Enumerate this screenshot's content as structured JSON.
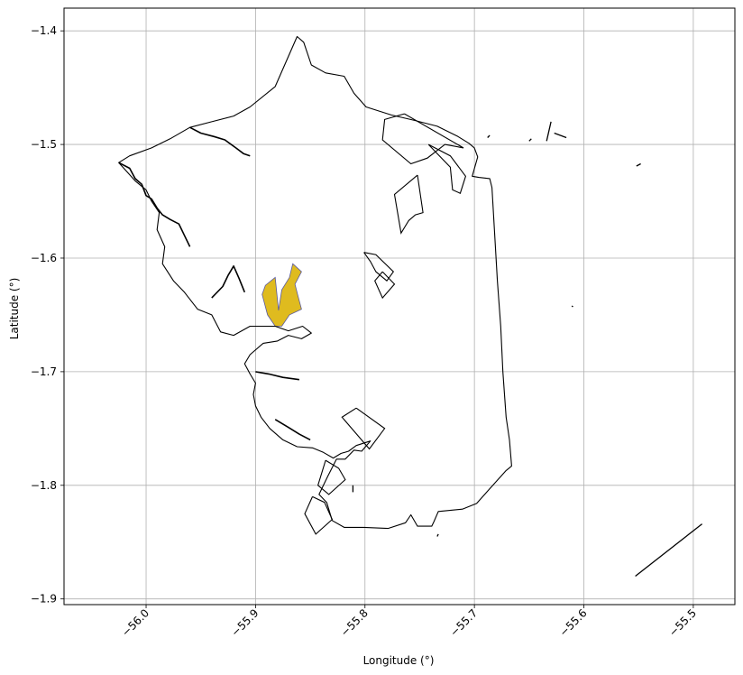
{
  "chart_data": {
    "type": "map",
    "xlabel": "Longitude (°)",
    "ylabel": "Latitude (°)",
    "xlim": [
      -56.075,
      -55.462
    ],
    "ylim": [
      -1.905,
      -1.38
    ],
    "grid": true,
    "x_ticks": [
      {
        "value": -56.0,
        "label": "−56.0"
      },
      {
        "value": -55.9,
        "label": "−55.9"
      },
      {
        "value": -55.8,
        "label": "−55.8"
      },
      {
        "value": -55.7,
        "label": "−55.7"
      },
      {
        "value": -55.6,
        "label": "−55.6"
      },
      {
        "value": -55.5,
        "label": "−55.5"
      }
    ],
    "y_ticks": [
      {
        "value": -1.4,
        "label": "−1.4"
      },
      {
        "value": -1.5,
        "label": "−1.5"
      },
      {
        "value": -1.6,
        "label": "−1.6"
      },
      {
        "value": -1.7,
        "label": "−1.7"
      },
      {
        "value": -1.8,
        "label": "−1.8"
      },
      {
        "value": -1.9,
        "label": "−1.9"
      }
    ],
    "colors": {
      "highlight_fill": "#dfbb1f",
      "highlight_edge": "#5a5aa0",
      "boundary": "#000000",
      "grid": "#b0b0b0"
    },
    "highlight_polygon": [
      [
        -55.879,
        -1.646
      ],
      [
        -55.876,
        -1.628
      ],
      [
        -55.869,
        -1.617
      ],
      [
        -55.866,
        -1.605
      ],
      [
        -55.858,
        -1.612
      ],
      [
        -55.864,
        -1.623
      ],
      [
        -55.861,
        -1.634
      ],
      [
        -55.858,
        -1.645
      ],
      [
        -55.869,
        -1.65
      ],
      [
        -55.876,
        -1.66
      ],
      [
        -55.882,
        -1.66
      ],
      [
        -55.889,
        -1.65
      ],
      [
        -55.894,
        -1.632
      ],
      [
        -55.891,
        -1.624
      ],
      [
        -55.882,
        -1.617
      ],
      [
        -55.879,
        -1.646
      ]
    ],
    "outline_main": [
      [
        -55.905,
        -1.467
      ],
      [
        -55.882,
        -1.449
      ],
      [
        -55.862,
        -1.405
      ],
      [
        -55.856,
        -1.41
      ],
      [
        -55.849,
        -1.43
      ],
      [
        -55.836,
        -1.437
      ],
      [
        -55.819,
        -1.44
      ],
      [
        -55.81,
        -1.455
      ],
      [
        -55.799,
        -1.467
      ],
      [
        -55.776,
        -1.474
      ],
      [
        -55.754,
        -1.479
      ],
      [
        -55.734,
        -1.484
      ],
      [
        -55.715,
        -1.493
      ],
      [
        -55.705,
        -1.499
      ],
      [
        -55.7,
        -1.503
      ],
      [
        -55.697,
        -1.511
      ],
      [
        -55.702,
        -1.528
      ],
      [
        -55.696,
        -1.529
      ],
      [
        -55.686,
        -1.53
      ],
      [
        -55.684,
        -1.538
      ],
      [
        -55.679,
        -1.62
      ],
      [
        -55.676,
        -1.66
      ],
      [
        -55.674,
        -1.7
      ],
      [
        -55.671,
        -1.74
      ],
      [
        -55.668,
        -1.76
      ],
      [
        -55.666,
        -1.783
      ],
      [
        -55.671,
        -1.787
      ],
      [
        -55.686,
        -1.803
      ],
      [
        -55.698,
        -1.816
      ],
      [
        -55.711,
        -1.821
      ],
      [
        -55.733,
        -1.823
      ],
      [
        -55.737,
        -1.832
      ],
      [
        -55.739,
        -1.836
      ],
      [
        -55.752,
        -1.836
      ],
      [
        -55.758,
        -1.826
      ],
      [
        -55.763,
        -1.833
      ],
      [
        -55.779,
        -1.838
      ],
      [
        -55.801,
        -1.837
      ],
      [
        -55.819,
        -1.837
      ],
      [
        -55.83,
        -1.831
      ],
      [
        -55.835,
        -1.815
      ],
      [
        -55.842,
        -1.808
      ],
      [
        -55.834,
        -1.792
      ],
      [
        -55.826,
        -1.777
      ],
      [
        -55.818,
        -1.777
      ],
      [
        -55.81,
        -1.769
      ],
      [
        -55.803,
        -1.77
      ],
      [
        -55.795,
        -1.761
      ],
      [
        -55.808,
        -1.765
      ],
      [
        -55.815,
        -1.77
      ],
      [
        -55.822,
        -1.772
      ],
      [
        -55.829,
        -1.776
      ],
      [
        -55.838,
        -1.771
      ],
      [
        -55.848,
        -1.767
      ],
      [
        -55.862,
        -1.766
      ],
      [
        -55.875,
        -1.76
      ],
      [
        -55.887,
        -1.75
      ],
      [
        -55.895,
        -1.74
      ],
      [
        -55.9,
        -1.73
      ],
      [
        -55.902,
        -1.72
      ],
      [
        -55.9,
        -1.71
      ],
      [
        -55.905,
        -1.702
      ],
      [
        -55.91,
        -1.693
      ],
      [
        -55.905,
        -1.685
      ],
      [
        -55.893,
        -1.675
      ],
      [
        -55.88,
        -1.673
      ],
      [
        -55.87,
        -1.668
      ],
      [
        -55.858,
        -1.671
      ],
      [
        -55.849,
        -1.666
      ],
      [
        -55.857,
        -1.66
      ],
      [
        -55.87,
        -1.664
      ],
      [
        -55.882,
        -1.66
      ],
      [
        -55.893,
        -1.66
      ],
      [
        -55.905,
        -1.66
      ],
      [
        -55.92,
        -1.668
      ],
      [
        -55.932,
        -1.665
      ],
      [
        -55.94,
        -1.65
      ],
      [
        -55.953,
        -1.645
      ],
      [
        -55.965,
        -1.63
      ],
      [
        -55.975,
        -1.62
      ],
      [
        -55.985,
        -1.605
      ],
      [
        -55.983,
        -1.59
      ],
      [
        -55.99,
        -1.575
      ],
      [
        -55.988,
        -1.56
      ],
      [
        -55.995,
        -1.55
      ],
      [
        -56.0,
        -1.54
      ],
      [
        -56.01,
        -1.532
      ],
      [
        -56.025,
        -1.516
      ],
      [
        -56.015,
        -1.51
      ],
      [
        -55.995,
        -1.503
      ],
      [
        -55.978,
        -1.495
      ],
      [
        -55.96,
        -1.485
      ],
      [
        -55.94,
        -1.48
      ],
      [
        -55.92,
        -1.475
      ],
      [
        -55.905,
        -1.467
      ]
    ],
    "outline_shapes": [
      [
        [
          -55.764,
          -1.473
        ],
        [
          -55.782,
          -1.478
        ],
        [
          -55.784,
          -1.496
        ],
        [
          -55.758,
          -1.517
        ],
        [
          -55.743,
          -1.512
        ],
        [
          -55.727,
          -1.5
        ],
        [
          -55.71,
          -1.503
        ],
        [
          -55.764,
          -1.473
        ]
      ],
      [
        [
          -55.752,
          -1.527
        ],
        [
          -55.773,
          -1.544
        ],
        [
          -55.767,
          -1.578
        ],
        [
          -55.76,
          -1.567
        ],
        [
          -55.754,
          -1.562
        ],
        [
          -55.747,
          -1.56
        ],
        [
          -55.752,
          -1.527
        ]
      ],
      [
        [
          -55.784,
          -1.612
        ],
        [
          -55.773,
          -1.623
        ],
        [
          -55.784,
          -1.635
        ],
        [
          -55.791,
          -1.62
        ],
        [
          -55.784,
          -1.612
        ]
      ],
      [
        [
          -55.808,
          -1.732
        ],
        [
          -55.782,
          -1.75
        ],
        [
          -55.796,
          -1.768
        ],
        [
          -55.821,
          -1.74
        ],
        [
          -55.808,
          -1.732
        ]
      ],
      [
        [
          -55.836,
          -1.778
        ],
        [
          -55.824,
          -1.785
        ],
        [
          -55.818,
          -1.795
        ],
        [
          -55.833,
          -1.808
        ],
        [
          -55.843,
          -1.8
        ],
        [
          -55.836,
          -1.778
        ]
      ],
      [
        [
          -55.848,
          -1.81
        ],
        [
          -55.837,
          -1.815
        ],
        [
          -55.83,
          -1.83
        ],
        [
          -55.845,
          -1.843
        ],
        [
          -55.855,
          -1.825
        ],
        [
          -55.848,
          -1.81
        ]
      ],
      [
        [
          -55.742,
          -1.5
        ],
        [
          -55.73,
          -1.512
        ],
        [
          -55.722,
          -1.52
        ],
        [
          -55.72,
          -1.54
        ],
        [
          -55.713,
          -1.543
        ],
        [
          -55.708,
          -1.528
        ],
        [
          -55.722,
          -1.51
        ],
        [
          -55.742,
          -1.5
        ]
      ],
      [
        [
          -55.801,
          -1.595
        ],
        [
          -55.795,
          -1.603
        ],
        [
          -55.79,
          -1.612
        ],
        [
          -55.78,
          -1.62
        ],
        [
          -55.774,
          -1.612
        ],
        [
          -55.79,
          -1.597
        ],
        [
          -55.801,
          -1.595
        ]
      ]
    ],
    "coast_wiggles": [
      [
        [
          -56.025,
          -1.516
        ],
        [
          -56.015,
          -1.521
        ],
        [
          -56.01,
          -1.53
        ],
        [
          -56.004,
          -1.535
        ],
        [
          -56.0,
          -1.545
        ],
        [
          -55.995,
          -1.548
        ],
        [
          -55.99,
          -1.556
        ],
        [
          -55.985,
          -1.562
        ],
        [
          -55.978,
          -1.566
        ],
        [
          -55.97,
          -1.57
        ],
        [
          -55.965,
          -1.58
        ],
        [
          -55.96,
          -1.59
        ]
      ],
      [
        [
          -55.96,
          -1.485
        ],
        [
          -55.95,
          -1.49
        ],
        [
          -55.938,
          -1.493
        ],
        [
          -55.928,
          -1.496
        ],
        [
          -55.918,
          -1.503
        ],
        [
          -55.911,
          -1.508
        ],
        [
          -55.905,
          -1.51
        ]
      ],
      [
        [
          -55.94,
          -1.635
        ],
        [
          -55.93,
          -1.625
        ],
        [
          -55.925,
          -1.615
        ],
        [
          -55.92,
          -1.607
        ],
        [
          -55.915,
          -1.618
        ],
        [
          -55.91,
          -1.63
        ]
      ],
      [
        [
          -55.9,
          -1.7
        ],
        [
          -55.888,
          -1.702
        ],
        [
          -55.875,
          -1.705
        ],
        [
          -55.86,
          -1.707
        ]
      ],
      [
        [
          -55.882,
          -1.742
        ],
        [
          -55.87,
          -1.749
        ],
        [
          -55.86,
          -1.755
        ],
        [
          -55.85,
          -1.76
        ]
      ]
    ],
    "offshore_segments": [
      [
        [
          -55.553,
          -1.88
        ],
        [
          -55.492,
          -1.834
        ]
      ],
      [
        [
          -55.634,
          -1.497
        ],
        [
          -55.63,
          -1.48
        ]
      ],
      [
        [
          -55.627,
          -1.49
        ],
        [
          -55.616,
          -1.494
        ]
      ],
      [
        [
          -55.552,
          -1.519
        ],
        [
          -55.548,
          -1.517
        ]
      ],
      [
        [
          -55.688,
          -1.494
        ],
        [
          -55.686,
          -1.492
        ]
      ],
      [
        [
          -55.65,
          -1.497
        ],
        [
          -55.648,
          -1.495
        ]
      ],
      [
        [
          -55.734,
          -1.845
        ],
        [
          -55.733,
          -1.843
        ]
      ],
      [
        [
          -55.61,
          -1.643
        ],
        [
          -55.611,
          -1.642
        ]
      ],
      [
        [
          -55.811,
          -1.8
        ],
        [
          -55.811,
          -1.806
        ]
      ]
    ]
  }
}
